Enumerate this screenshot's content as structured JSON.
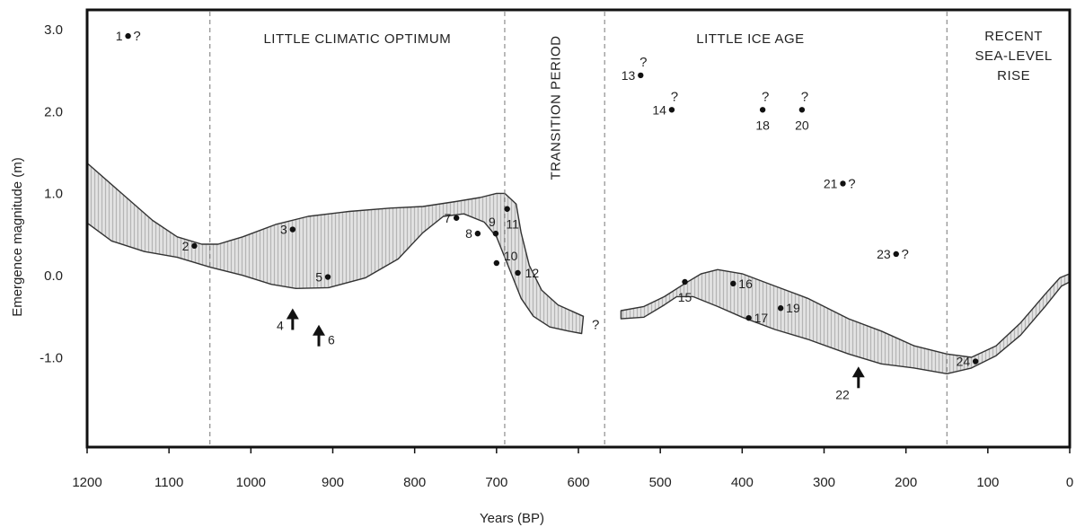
{
  "chart_data": {
    "type": "scatter",
    "xlabel": "Years  (BP)",
    "ylabel": "Emergence magnitude  (m)",
    "xlim": [
      1200,
      0
    ],
    "ylim": [
      -2.0,
      3.3
    ],
    "x_ticks": [
      "1200",
      "1100",
      "1000",
      "900",
      "800",
      "700",
      "600",
      "500",
      "400",
      "300",
      "200",
      "100",
      "0"
    ],
    "x_tick_values": [
      1200,
      1100,
      1000,
      900,
      800,
      700,
      600,
      500,
      400,
      300,
      200,
      100,
      0
    ],
    "y_ticks": [
      "3.0",
      "2.0",
      "1.0",
      "0.0",
      "-1.0"
    ],
    "y_tick_values": [
      3.0,
      2.0,
      1.0,
      0.0,
      -1.0
    ],
    "period_boundaries": [
      1050,
      690,
      568,
      150
    ],
    "periods": [
      {
        "label": "LITTLE CLIMATIC OPTIMUM",
        "x": 870,
        "vertical": false
      },
      {
        "label": "TRANSITION PERIOD",
        "x": 629,
        "vertical": true
      },
      {
        "label": "LITTLE ICE AGE",
        "x": 390,
        "vertical": false
      },
      {
        "label": "RECENT\nSEA-LEVEL\nRISE",
        "x": 75,
        "vertical": false
      }
    ],
    "band_segments": [
      {
        "upper": [
          [
            1200,
            1.45
          ],
          [
            1160,
            1.1
          ],
          [
            1120,
            0.75
          ],
          [
            1090,
            0.55
          ],
          [
            1060,
            0.46
          ],
          [
            1040,
            0.46
          ],
          [
            1010,
            0.55
          ],
          [
            970,
            0.7
          ],
          [
            930,
            0.8
          ],
          [
            880,
            0.86
          ],
          [
            830,
            0.9
          ],
          [
            790,
            0.92
          ],
          [
            750,
            0.98
          ],
          [
            720,
            1.03
          ],
          [
            700,
            1.08
          ],
          [
            690,
            1.08
          ],
          [
            676,
            0.95
          ],
          [
            670,
            0.6
          ],
          [
            660,
            0.2
          ],
          [
            645,
            -0.1
          ],
          [
            625,
            -0.28
          ],
          [
            605,
            -0.37
          ],
          [
            594,
            -0.42
          ]
        ],
        "lower": [
          [
            1200,
            0.72
          ],
          [
            1170,
            0.5
          ],
          [
            1130,
            0.37
          ],
          [
            1090,
            0.3
          ],
          [
            1050,
            0.18
          ],
          [
            1010,
            0.08
          ],
          [
            975,
            -0.03
          ],
          [
            945,
            -0.08
          ],
          [
            905,
            -0.07
          ],
          [
            860,
            0.05
          ],
          [
            820,
            0.28
          ],
          [
            790,
            0.6
          ],
          [
            765,
            0.8
          ],
          [
            740,
            0.83
          ],
          [
            715,
            0.73
          ],
          [
            700,
            0.55
          ],
          [
            690,
            0.3
          ],
          [
            680,
            0.05
          ],
          [
            670,
            -0.2
          ],
          [
            655,
            -0.42
          ],
          [
            635,
            -0.55
          ],
          [
            612,
            -0.6
          ],
          [
            596,
            -0.63
          ]
        ]
      },
      {
        "upper": [
          [
            548,
            -0.35
          ],
          [
            520,
            -0.3
          ],
          [
            495,
            -0.18
          ],
          [
            470,
            -0.02
          ],
          [
            450,
            0.1
          ],
          [
            430,
            0.15
          ],
          [
            400,
            0.1
          ],
          [
            360,
            -0.05
          ],
          [
            320,
            -0.2
          ],
          [
            270,
            -0.45
          ],
          [
            230,
            -0.6
          ],
          [
            190,
            -0.78
          ],
          [
            150,
            -0.88
          ],
          [
            120,
            -0.92
          ],
          [
            90,
            -0.78
          ],
          [
            60,
            -0.5
          ],
          [
            30,
            -0.15
          ],
          [
            12,
            0.05
          ],
          [
            0,
            0.1
          ]
        ],
        "lower": [
          [
            548,
            -0.45
          ],
          [
            520,
            -0.43
          ],
          [
            495,
            -0.28
          ],
          [
            480,
            -0.18
          ],
          [
            460,
            -0.18
          ],
          [
            430,
            -0.3
          ],
          [
            400,
            -0.43
          ],
          [
            360,
            -0.58
          ],
          [
            320,
            -0.7
          ],
          [
            270,
            -0.88
          ],
          [
            230,
            -1.0
          ],
          [
            190,
            -1.05
          ],
          [
            150,
            -1.12
          ],
          [
            120,
            -1.05
          ],
          [
            90,
            -0.9
          ],
          [
            60,
            -0.65
          ],
          [
            30,
            -0.3
          ],
          [
            10,
            -0.05
          ],
          [
            0,
            0.0
          ]
        ]
      }
    ],
    "points": [
      {
        "label": "1",
        "x": 1150,
        "y": 3.0,
        "q": true
      },
      {
        "label": "2",
        "x": 1069,
        "y": 0.44,
        "q": false
      },
      {
        "label": "3",
        "x": 949,
        "y": 0.64,
        "q": false
      },
      {
        "label": "5",
        "x": 906,
        "y": 0.06,
        "q": false
      },
      {
        "label": "7",
        "x": 749,
        "y": 0.78,
        "q": false
      },
      {
        "label": "8",
        "x": 723,
        "y": 0.59,
        "q": false
      },
      {
        "label": "9",
        "x": 701,
        "y": 0.59,
        "q": false
      },
      {
        "label": "10",
        "x": 700,
        "y": 0.23,
        "q": false
      },
      {
        "label": "11",
        "x": 687,
        "y": 0.89,
        "q": false
      },
      {
        "label": "12",
        "x": 674,
        "y": 0.11,
        "q": false
      },
      {
        "label": "13",
        "x": 524,
        "y": 2.52,
        "q": true
      },
      {
        "label": "14",
        "x": 486,
        "y": 2.1,
        "q": true
      },
      {
        "label": "15",
        "x": 470,
        "y": 0.0,
        "q": false
      },
      {
        "label": "16",
        "x": 411,
        "y": -0.02,
        "q": false
      },
      {
        "label": "17",
        "x": 392,
        "y": -0.44,
        "q": false
      },
      {
        "label": "18",
        "x": 375,
        "y": 2.1,
        "q": true
      },
      {
        "label": "19",
        "x": 353,
        "y": -0.32,
        "q": false
      },
      {
        "label": "20",
        "x": 327,
        "y": 2.1,
        "q": true
      },
      {
        "label": "21",
        "x": 277,
        "y": 1.2,
        "q": true
      },
      {
        "label": "23",
        "x": 212,
        "y": 0.34,
        "q": true
      },
      {
        "label": "24",
        "x": 115,
        "y": -0.97,
        "q": false
      }
    ],
    "arrows": [
      {
        "label": "4",
        "x": 949,
        "y": -0.52
      },
      {
        "label": "6",
        "x": 917,
        "y": -0.72
      },
      {
        "label": "22",
        "x": 258,
        "y": -1.23
      }
    ],
    "gap_question": {
      "text": "?",
      "x": 579,
      "y": -0.52
    }
  }
}
